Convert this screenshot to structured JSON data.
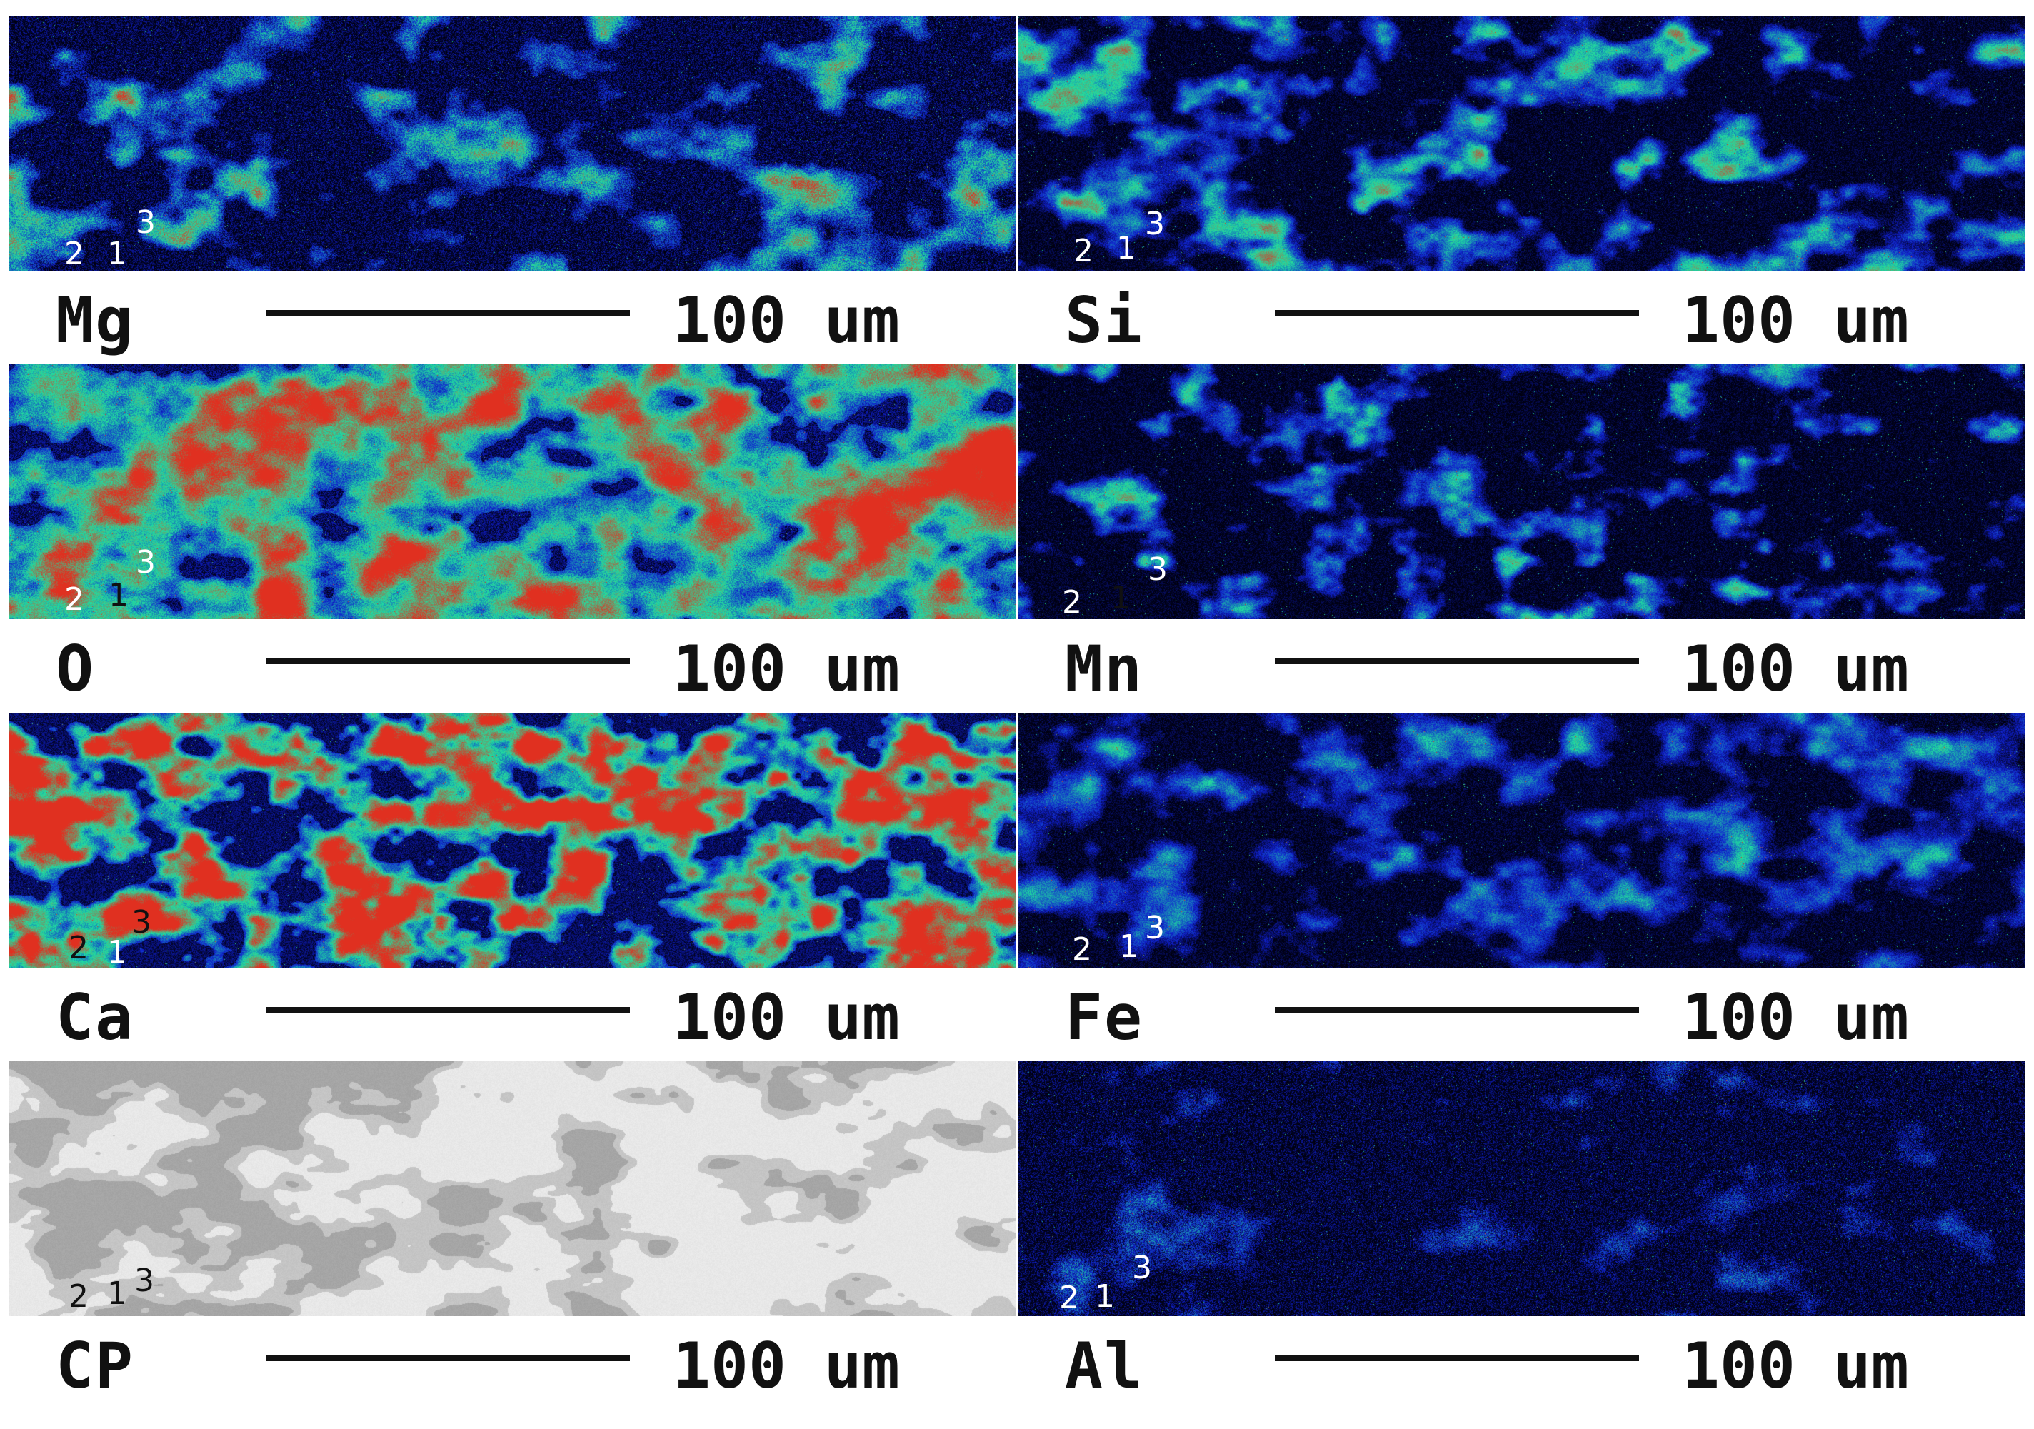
{
  "panels": [
    {
      "element": "Mg",
      "scale": "100 um",
      "palette": "mg"
    },
    {
      "element": "Si",
      "scale": "100 um",
      "palette": "si"
    },
    {
      "element": "O",
      "scale": "100 um",
      "palette": "o"
    },
    {
      "element": "Mn",
      "scale": "100 um",
      "palette": "mn"
    },
    {
      "element": "Ca",
      "scale": "100 um",
      "palette": "ca"
    },
    {
      "element": "Fe",
      "scale": "100 um",
      "palette": "fe"
    },
    {
      "element": "CP",
      "scale": "100 um",
      "palette": "cp"
    },
    {
      "element": "Al",
      "scale": "100 um",
      "palette": "al"
    }
  ],
  "point_markers": [
    "2",
    "1",
    "3"
  ],
  "colors": {
    "map_background": "#000010",
    "low_intensity": "#1020d0",
    "mid_intensity": "#20e0a0",
    "high_intensity": "#e03020",
    "cp_light": "#e8e8e8",
    "cp_dark": "#9a9a9a",
    "marker_light": "#ffffff",
    "marker_dark": "#111111"
  }
}
